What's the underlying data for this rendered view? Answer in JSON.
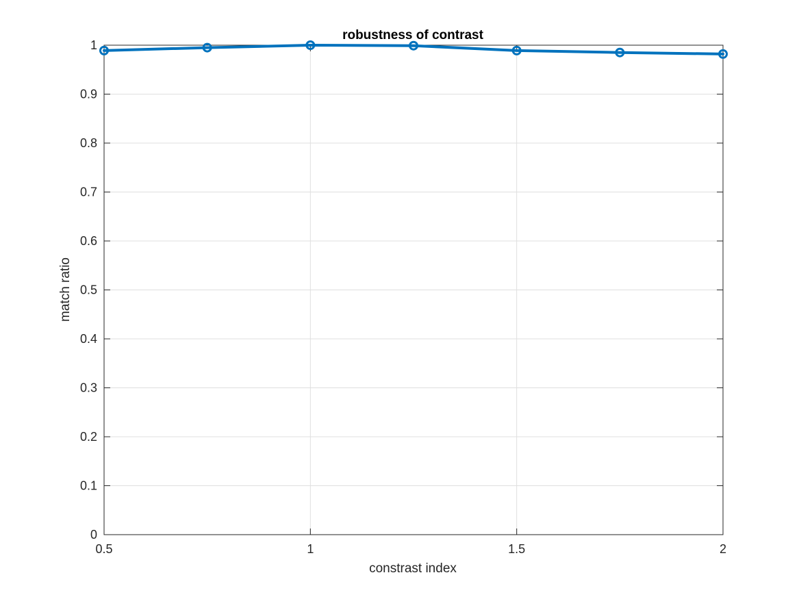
{
  "chart_data": {
    "type": "line",
    "title": "robustness of contrast",
    "xlabel": "constrast index",
    "ylabel": "match ratio",
    "xlim": [
      0.5,
      2
    ],
    "ylim": [
      0,
      1
    ],
    "xticks": [
      0.5,
      1,
      1.5,
      2
    ],
    "xtick_labels": [
      "0.5",
      "1",
      "1.5",
      "2"
    ],
    "yticks": [
      0,
      0.1,
      0.2,
      0.3,
      0.4,
      0.5,
      0.6,
      0.7,
      0.8,
      0.9,
      1
    ],
    "ytick_labels": [
      "0",
      "0.1",
      "0.2",
      "0.3",
      "0.4",
      "0.5",
      "0.6",
      "0.7",
      "0.8",
      "0.9",
      "1"
    ],
    "grid": true,
    "legend": false,
    "series": [
      {
        "x": [
          0.5,
          0.75,
          1.0,
          1.25,
          1.5,
          1.75,
          2.0
        ],
        "y": [
          0.989,
          0.995,
          1.0,
          0.999,
          0.989,
          0.985,
          0.982
        ],
        "marker": "circle",
        "color": "#0072BD"
      }
    ]
  }
}
